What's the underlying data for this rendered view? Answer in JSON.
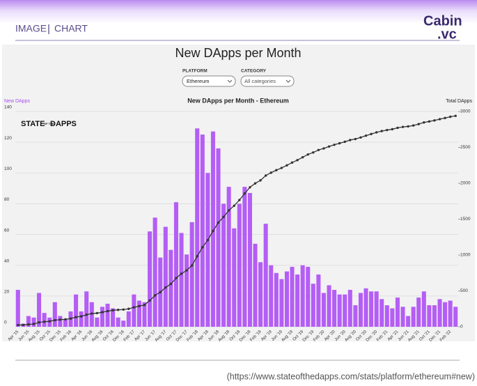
{
  "header": {
    "section": "IMAGE",
    "kind": "CHART",
    "logo_top": "Cabin",
    "logo_bottom": ".vc"
  },
  "filters": [
    {
      "label": "PLATFORM",
      "value": "Ethereum"
    },
    {
      "label": "CATEGORY",
      "value": "All categories"
    }
  ],
  "watermark": {
    "left": "STATE",
    "middle": "OF THE",
    "right": "DAPPS"
  },
  "source": "(https://www.stateofthedapps.com/stats/platform/ethereum#new)",
  "chart_data": {
    "type": "bar",
    "title": "New DApps per Month",
    "subtitle": "New DApps per Month - Ethereum",
    "categories": [
      "Apr '15",
      null,
      "Jun '15",
      null,
      "Aug '15",
      null,
      "Oct '15",
      null,
      "Dec '15",
      null,
      "Feb '16",
      null,
      "Apr '16",
      null,
      "Jun '16",
      null,
      "Aug '16",
      null,
      "Oct '16",
      null,
      "Dec '16",
      null,
      "Feb '17",
      null,
      "Apr '17",
      null,
      "Jun '17",
      null,
      "Aug '17",
      null,
      "Oct '17",
      null,
      "Dec '17",
      null,
      "Feb '18",
      null,
      "Apr '18",
      null,
      "Jun '18",
      null,
      "Aug '18",
      null,
      "Oct '18",
      null,
      "Dec '18",
      null,
      "Feb '19",
      null,
      "Apr '19",
      null,
      "Jun '19",
      null,
      "Aug '19",
      null,
      "Oct '19",
      null,
      "Dec '19",
      null,
      "Feb '20",
      null,
      "Apr '20",
      null,
      "Jun '20",
      null,
      "Aug '20",
      null,
      "Oct '20",
      null,
      "Dec '20",
      null,
      "Feb '21",
      null,
      "Apr '21",
      null,
      "Jun '21",
      null,
      "Aug '21",
      null,
      "Oct '21",
      null,
      "Dec '21",
      null,
      "Feb '22",
      null
    ],
    "series": [
      {
        "name": "New DApps",
        "type": "bar",
        "color": "#b45ef5",
        "values": [
          24,
          2,
          7,
          6,
          22,
          9,
          6,
          16,
          7,
          5,
          10,
          21,
          10,
          23,
          16,
          6,
          13,
          15,
          12,
          6,
          4,
          10,
          21,
          17,
          16,
          62,
          71,
          45,
          65,
          50,
          81,
          61,
          47,
          68,
          129,
          125,
          100,
          127,
          116,
          80,
          91,
          64,
          80,
          91,
          87,
          54,
          42,
          67,
          40,
          35,
          31,
          36,
          39,
          34,
          40,
          39,
          28,
          34,
          22,
          27,
          24,
          21,
          21,
          24,
          14,
          22,
          25,
          23,
          23,
          18,
          14,
          12,
          19,
          13,
          7,
          13,
          19,
          23,
          14,
          14,
          18,
          16,
          17,
          13
        ]
      },
      {
        "name": "Total DApps",
        "type": "line",
        "axis": "y2",
        "color": "#333333",
        "values": [
          24,
          26,
          33,
          39,
          61,
          70,
          76,
          92,
          99,
          104,
          114,
          135,
          145,
          168,
          184,
          190,
          203,
          218,
          230,
          236,
          240,
          250,
          271,
          288,
          304,
          366,
          437,
          482,
          547,
          597,
          678,
          739,
          786,
          854,
          983,
          1108,
          1208,
          1335,
          1451,
          1531,
          1622,
          1686,
          1766,
          1857,
          1944,
          1998,
          2040,
          2107,
          2147,
          2182,
          2213,
          2249,
          2288,
          2322,
          2362,
          2401,
          2429,
          2463,
          2485,
          2512,
          2536,
          2557,
          2578,
          2602,
          2616,
          2638,
          2663,
          2686,
          2709,
          2727,
          2741,
          2753,
          2772,
          2785,
          2792,
          2805,
          2824,
          2847,
          2861,
          2875,
          2893,
          2909,
          2926,
          2939
        ]
      }
    ],
    "ylim": [
      0,
      140
    ],
    "yticks": [
      0,
      20,
      40,
      60,
      80,
      100,
      120,
      140
    ],
    "y2lim": [
      0,
      3000
    ],
    "y2ticks": [
      0,
      500,
      1000,
      1500,
      2000,
      2500,
      3000
    ],
    "grid": true
  }
}
